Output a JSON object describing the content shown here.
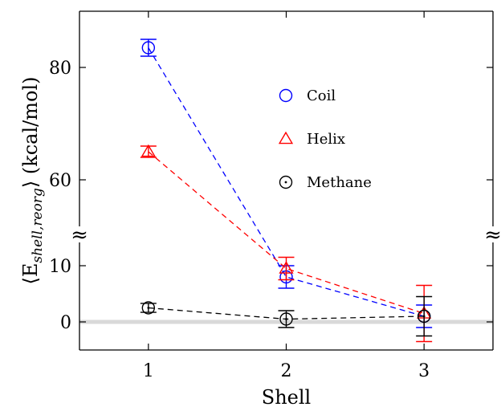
{
  "chart_data": {
    "type": "scatter",
    "xlabel": "Shell",
    "ylabel_main": "⟨E",
    "ylabel_sub": "shell,reorg",
    "ylabel_tail": "⟩ (kcal/mol)",
    "x": [
      1,
      2,
      3
    ],
    "xlim": [
      0.5,
      3.5
    ],
    "x_ticks": [
      "1",
      "2",
      "3"
    ],
    "y_ticks": [
      "0",
      "10",
      "60",
      "80"
    ],
    "broken_y_axis": true,
    "ylim_lower": [
      -5,
      14
    ],
    "ylim_upper": [
      50,
      90
    ],
    "break_marker": "≈",
    "zero_line": true,
    "grid": false,
    "legend_position": "center",
    "series": [
      {
        "name": "Coil",
        "marker": "circle",
        "color": "#0000ff",
        "values": [
          83.5,
          8.0,
          1.0
        ],
        "errors": [
          1.5,
          2.0,
          2.0
        ]
      },
      {
        "name": "Helix",
        "marker": "triangle",
        "color": "#ff0000",
        "values": [
          65.0,
          9.5,
          1.5
        ],
        "errors": [
          1.0,
          2.0,
          5.0
        ]
      },
      {
        "name": "Methane",
        "marker": "circle-dot",
        "color": "#000000",
        "values": [
          2.5,
          0.5,
          1.0
        ],
        "errors": [
          0.8,
          1.5,
          3.5
        ]
      }
    ]
  }
}
